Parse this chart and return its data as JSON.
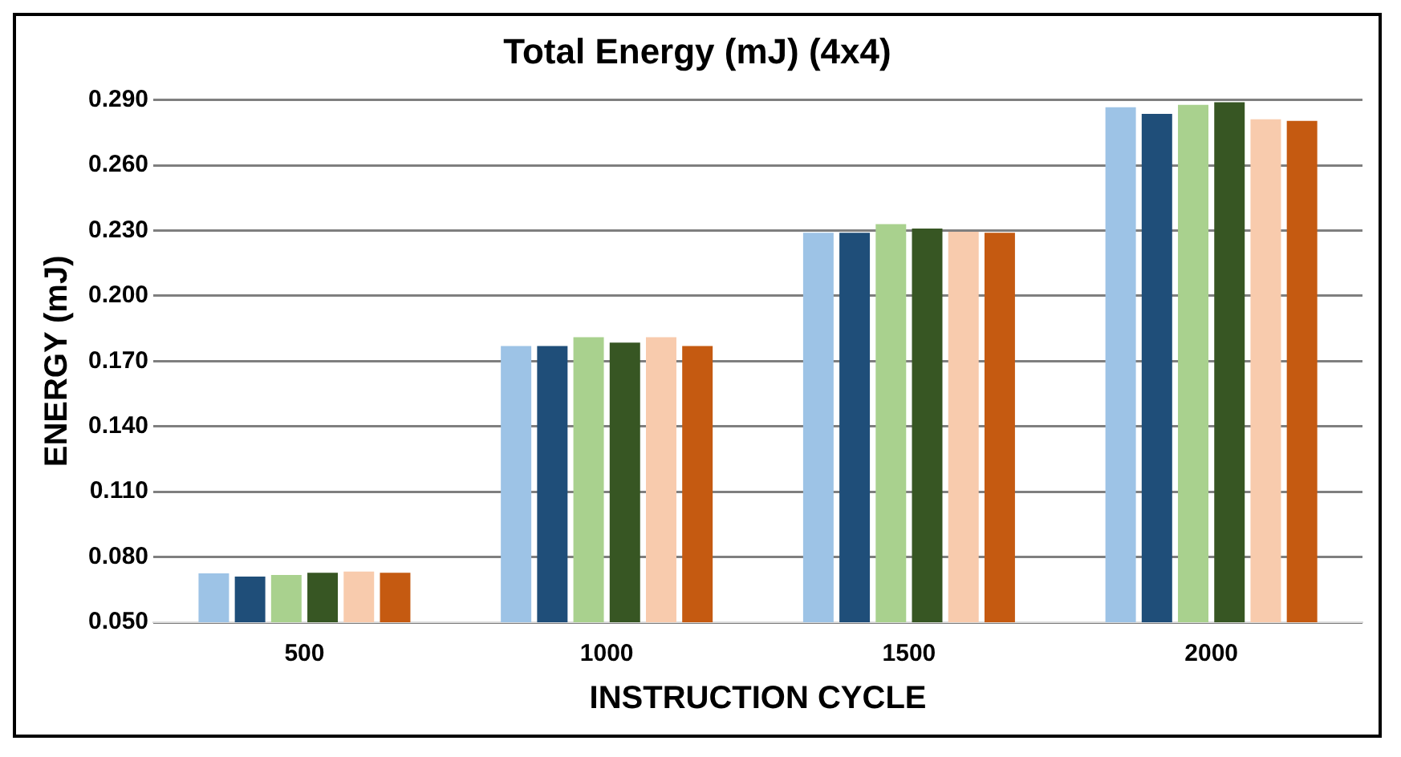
{
  "chart_data": {
    "type": "bar",
    "title": "Total Energy (mJ) (4x4)",
    "xlabel": "INSTRUCTION CYCLE",
    "ylabel": "ENERGY (mJ)",
    "categories": [
      "500",
      "1000",
      "1500",
      "2000"
    ],
    "series": [
      {
        "color": "#9dc3e6",
        "values": [
          0.0725,
          0.177,
          0.229,
          0.2867
        ]
      },
      {
        "color": "#1f4e79",
        "values": [
          0.071,
          0.177,
          0.229,
          0.2837
        ]
      },
      {
        "color": "#a9d18e",
        "values": [
          0.0717,
          0.181,
          0.233,
          0.2878
        ]
      },
      {
        "color": "#375623",
        "values": [
          0.0728,
          0.1785,
          0.231,
          0.289
        ]
      },
      {
        "color": "#f8cbad",
        "values": [
          0.0733,
          0.181,
          0.2295,
          0.2812
        ]
      },
      {
        "color": "#c55a11",
        "values": [
          0.0728,
          0.177,
          0.229,
          0.2804
        ]
      }
    ],
    "ylim": [
      0.05,
      0.29
    ],
    "yticks": [
      {
        "value": 0.05,
        "label": "0.050"
      },
      {
        "value": 0.08,
        "label": "0.080"
      },
      {
        "value": 0.11,
        "label": "0.110"
      },
      {
        "value": 0.14,
        "label": "0.140"
      },
      {
        "value": 0.17,
        "label": "0.170"
      },
      {
        "value": 0.2,
        "label": "0.200"
      },
      {
        "value": 0.23,
        "label": "0.230"
      },
      {
        "value": 0.26,
        "label": "0.260"
      },
      {
        "value": 0.29,
        "label": "0.290"
      }
    ],
    "grid": "y",
    "legend": false
  }
}
